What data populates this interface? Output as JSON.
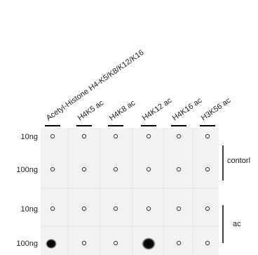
{
  "columns": [
    "Acetyl-Histone H4-K5/K8/K12/K16",
    "H4K5 ac",
    "H4K8 ac",
    "H4K12 ac",
    "H4K16 ac",
    "H3K56 ac"
  ],
  "rows": [
    "10ng",
    "100ng",
    "10ng",
    "100ng"
  ],
  "groups": [
    "contorl",
    "ac"
  ]
}
